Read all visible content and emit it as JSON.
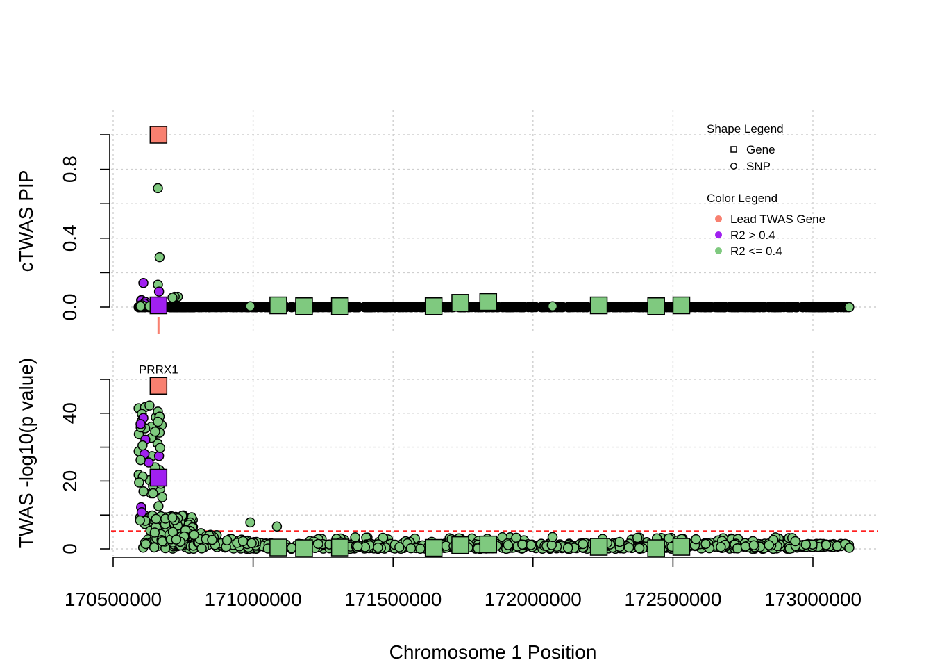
{
  "chart_data": {
    "type": "scatter",
    "xlabel": "Chromosome 1 Position",
    "xlim": [
      170500000,
      173220000
    ],
    "x_ticks": [
      "170500000",
      "171000000",
      "171500000",
      "172000000",
      "172500000",
      "173000000"
    ],
    "x_tick_values": [
      170500000,
      171000000,
      171500000,
      172000000,
      172500000,
      173000000
    ],
    "colors": {
      "lead": "#f88070",
      "high_r2": "#a020f0",
      "low_r2": "#7fc97f",
      "threshold": "#ff0000"
    },
    "legend": {
      "placement": "top-right",
      "shape_title": "Shape Legend",
      "shapes": [
        {
          "label": "Gene",
          "shape": "square"
        },
        {
          "label": "SNP",
          "shape": "circle"
        }
      ],
      "color_title": "Color Legend",
      "color_entries": [
        {
          "label": "Lead TWAS Gene",
          "color": "#f88070"
        },
        {
          "label": "R2 > 0.4",
          "color": "#a020f0"
        },
        {
          "label": "R2 <= 0.4",
          "color": "#7fc97f"
        }
      ]
    },
    "top_panel": {
      "ylabel": "cTWAS PIP",
      "ylim": [
        -0.15,
        1.1
      ],
      "y_ticks": [
        "0.0",
        "0.4",
        "0.8"
      ],
      "y_tick_values": [
        0,
        0.4,
        0.8
      ],
      "y_minor_ticks": [
        0,
        0.2,
        0.4,
        0.6,
        0.8,
        1.0
      ],
      "grid": true
    },
    "bottom_panel": {
      "ylabel": "TWAS -log10(p value)",
      "ylim": [
        -2,
        52
      ],
      "y_ticks": [
        "0",
        "20",
        "40"
      ],
      "y_tick_values": [
        0,
        20,
        40
      ],
      "y_minor_ticks": [
        0,
        10,
        20,
        30,
        40,
        50
      ],
      "threshold": 5.3,
      "grid": true
    },
    "lead_gene": {
      "label": "PRRX1",
      "x": 170662000,
      "pip": 1.0,
      "z": 48.1
    },
    "genes": [
      {
        "x": 170662000,
        "pip": 1.0,
        "z": 48.1,
        "group": "lead"
      },
      {
        "x": 170662000,
        "pip": 0.01,
        "z": 21.0,
        "group": "high_r2"
      },
      {
        "x": 171090000,
        "pip": 0.01,
        "z": 0.4,
        "group": "low_r2"
      },
      {
        "x": 171182000,
        "pip": 0.005,
        "z": 0.2,
        "group": "low_r2"
      },
      {
        "x": 171310000,
        "pip": 0.005,
        "z": 0.4,
        "group": "low_r2"
      },
      {
        "x": 171645000,
        "pip": 0.005,
        "z": 0.3,
        "group": "low_r2"
      },
      {
        "x": 171740000,
        "pip": 0.025,
        "z": 1.1,
        "group": "low_r2"
      },
      {
        "x": 171840000,
        "pip": 0.03,
        "z": 1.3,
        "group": "low_r2"
      },
      {
        "x": 172235000,
        "pip": 0.01,
        "z": 0.6,
        "group": "low_r2"
      },
      {
        "x": 172440000,
        "pip": 0.005,
        "z": 0.2,
        "group": "low_r2"
      },
      {
        "x": 172530000,
        "pip": 0.01,
        "z": 0.6,
        "group": "low_r2"
      }
    ],
    "snps_highlight": [
      {
        "x": 170660000,
        "pip": 0.69,
        "z": 40.5,
        "group": "low_r2"
      },
      {
        "x": 170666000,
        "pip": 0.29,
        "z": 39.0,
        "group": "low_r2"
      },
      {
        "x": 170608000,
        "pip": 0.14,
        "z": 38.6,
        "group": "high_r2"
      },
      {
        "x": 170660000,
        "pip": 0.13,
        "z": 37.5,
        "group": "low_r2"
      },
      {
        "x": 170664000,
        "pip": 0.09,
        "z": 27.4,
        "group": "high_r2"
      },
      {
        "x": 170731000,
        "pip": 0.06,
        "z": 9.0,
        "group": "low_r2"
      },
      {
        "x": 170720000,
        "pip": 0.06,
        "z": 8.5,
        "group": "low_r2"
      },
      {
        "x": 170712000,
        "pip": 0.055,
        "z": 9.2,
        "group": "low_r2"
      },
      {
        "x": 170600000,
        "pip": 0.04,
        "z": 12.3,
        "group": "high_r2"
      },
      {
        "x": 170602000,
        "pip": 0.04,
        "z": 10.8,
        "group": "high_r2"
      },
      {
        "x": 170615000,
        "pip": 0.03,
        "z": 32.2,
        "group": "high_r2"
      },
      {
        "x": 170627000,
        "pip": 0.02,
        "z": 25.5,
        "group": "high_r2"
      },
      {
        "x": 170612000,
        "pip": 0.02,
        "z": 28.0,
        "group": "high_r2"
      },
      {
        "x": 170598000,
        "pip": 0.01,
        "z": 36.8,
        "group": "high_r2"
      },
      {
        "x": 170605000,
        "pip": 0.01,
        "z": 30.5,
        "group": "low_r2"
      },
      {
        "x": 170596000,
        "pip": 0.005,
        "z": 8.4,
        "group": "low_r2"
      },
      {
        "x": 170598000,
        "pip": 0.005,
        "z": 26.2,
        "group": "low_r2"
      },
      {
        "x": 170630000,
        "pip": 0.005,
        "z": 42.3,
        "group": "low_r2"
      },
      {
        "x": 170668000,
        "pip": 0.005,
        "z": 29.8,
        "group": "low_r2"
      },
      {
        "x": 170650000,
        "pip": 0.005,
        "z": 34.6,
        "group": "low_r2"
      },
      {
        "x": 170670000,
        "pip": 0.005,
        "z": 19.2,
        "group": "low_r2"
      },
      {
        "x": 170662000,
        "pip": 0.005,
        "z": 12.6,
        "group": "low_r2"
      },
      {
        "x": 170990000,
        "pip": 0.005,
        "z": 7.8,
        "group": "low_r2"
      },
      {
        "x": 171085000,
        "pip": 0.005,
        "z": 6.6,
        "group": "low_r2"
      },
      {
        "x": 172070000,
        "pip": 0.005,
        "z": 3.5,
        "group": "low_r2"
      },
      {
        "x": 173130000,
        "pip": 0.0,
        "z": 0.3,
        "group": "low_r2"
      }
    ]
  }
}
